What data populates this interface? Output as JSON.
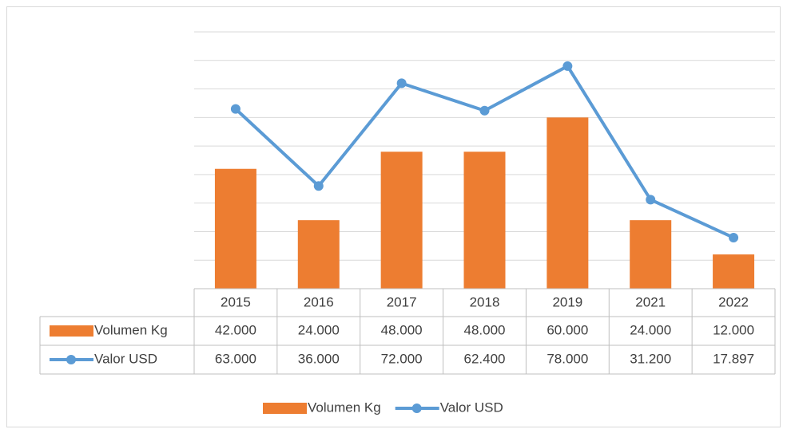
{
  "chart_data": {
    "type": "bar",
    "categories": [
      "2015",
      "2016",
      "2017",
      "2018",
      "2019",
      "2021",
      "2022"
    ],
    "series": [
      {
        "name": "Volumen Kg",
        "type": "bar",
        "color": "#ed7d31",
        "values": [
          42000,
          24000,
          48000,
          48000,
          60000,
          24000,
          12000
        ],
        "value_labels": [
          "42.000",
          "24.000",
          "48.000",
          "48.000",
          "60.000",
          "24.000",
          "12.000"
        ]
      },
      {
        "name": "Valor USD",
        "type": "line",
        "color": "#5b9bd5",
        "values": [
          63000,
          36000,
          72000,
          62400,
          78000,
          31200,
          17897
        ],
        "value_labels": [
          "63.000",
          "36.000",
          "72.000",
          "62.400",
          "78.000",
          "31.200",
          "17.897"
        ]
      }
    ],
    "ylim": [
      0,
      90000
    ],
    "yticks": [
      0,
      10000,
      20000,
      30000,
      40000,
      50000,
      60000,
      70000,
      80000,
      90000
    ],
    "grid": true,
    "legend": "bottom"
  }
}
